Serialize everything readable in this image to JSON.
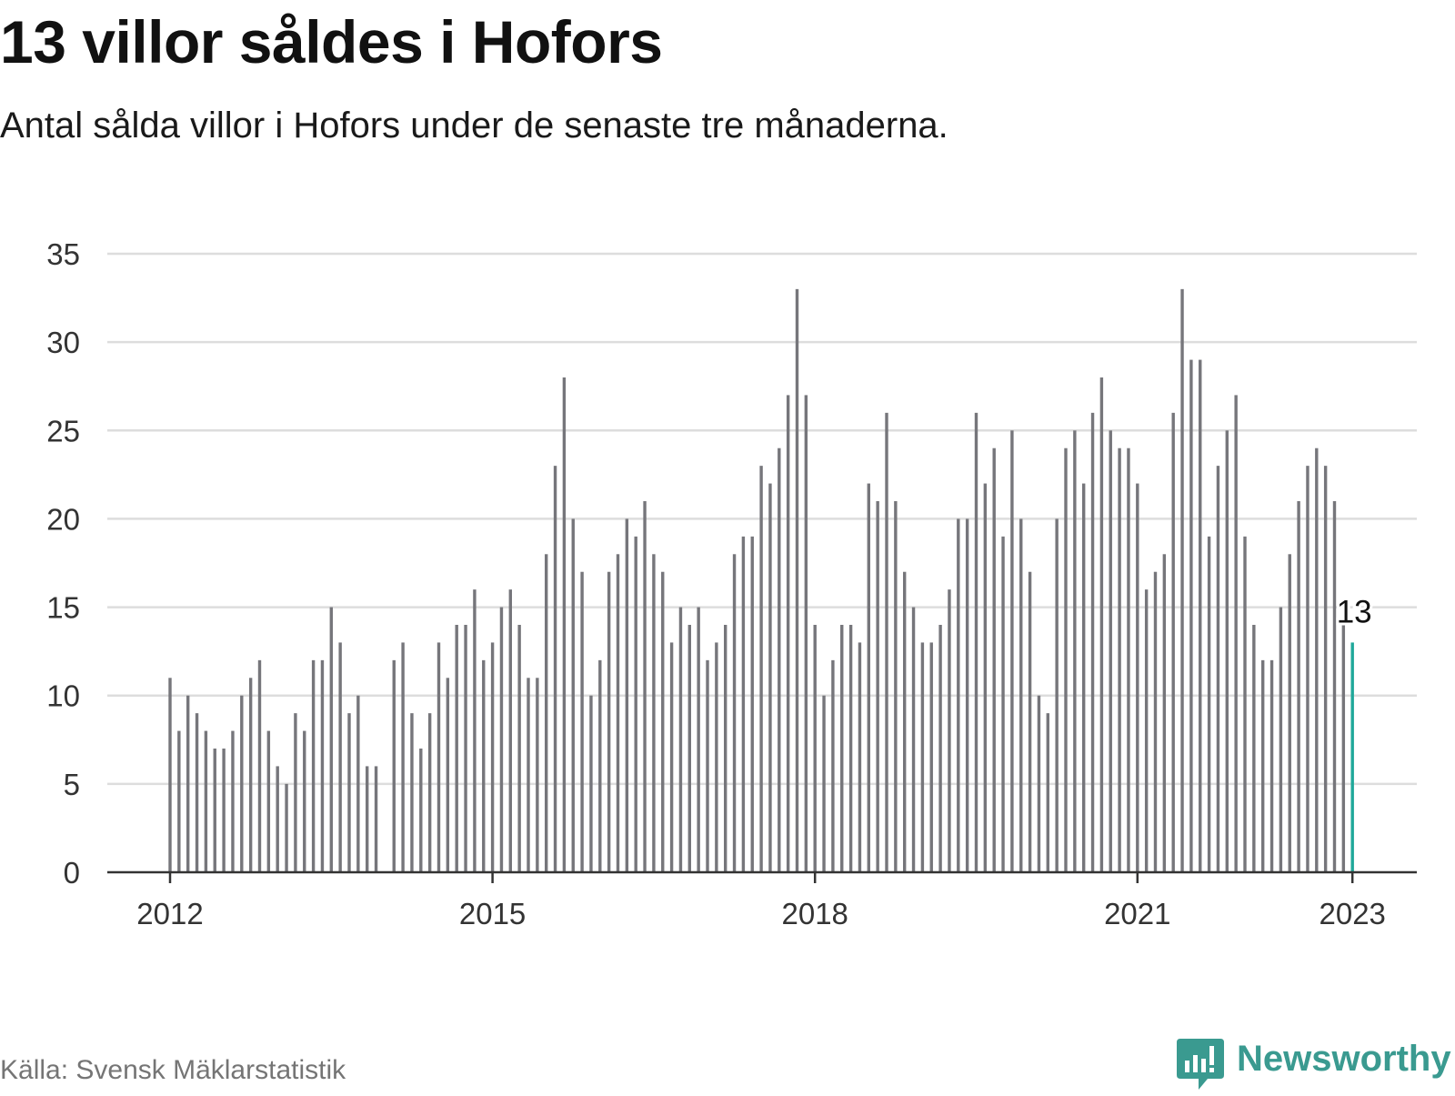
{
  "header": {
    "title": "13 villor såldes i Hofors",
    "subtitle": "Antal sålda villor i Hofors under de senaste tre månaderna."
  },
  "footer": {
    "source": "Källa: Svensk Mäklarstatistik",
    "brand": "Newsworthy"
  },
  "colors": {
    "bar": "#76767b",
    "highlight": "#1fa89a",
    "grid": "#dddddd",
    "axis": "#333333",
    "brand": "#3a9a90"
  },
  "chart_data": {
    "type": "bar",
    "ylim": [
      0,
      35
    ],
    "yticks": [
      0,
      5,
      10,
      15,
      20,
      25,
      30,
      35
    ],
    "xticks": [
      {
        "label": "2012",
        "index": 0
      },
      {
        "label": "2015",
        "index": 36
      },
      {
        "label": "2018",
        "index": 72
      },
      {
        "label": "2021",
        "index": 108
      },
      {
        "label": "2023",
        "index": 132
      }
    ],
    "grid": true,
    "first_period": "2012-01",
    "last_period": "2023-01",
    "values": [
      11,
      8,
      10,
      9,
      8,
      7,
      7,
      8,
      10,
      11,
      12,
      8,
      6,
      5,
      9,
      8,
      12,
      12,
      15,
      13,
      9,
      10,
      6,
      6,
      null,
      12,
      13,
      9,
      7,
      9,
      13,
      11,
      14,
      14,
      16,
      12,
      13,
      15,
      16,
      14,
      11,
      11,
      18,
      23,
      28,
      20,
      17,
      10,
      12,
      17,
      18,
      20,
      19,
      21,
      18,
      17,
      13,
      15,
      14,
      15,
      12,
      13,
      14,
      18,
      19,
      19,
      23,
      22,
      24,
      27,
      33,
      27,
      14,
      10,
      12,
      14,
      14,
      13,
      22,
      21,
      26,
      21,
      17,
      15,
      13,
      13,
      14,
      16,
      20,
      20,
      26,
      22,
      24,
      19,
      25,
      20,
      17,
      10,
      9,
      20,
      24,
      25,
      22,
      26,
      28,
      25,
      24,
      24,
      22,
      16,
      17,
      18,
      26,
      33,
      29,
      29,
      19,
      23,
      25,
      27,
      19,
      14,
      12,
      12,
      15,
      18,
      21,
      23,
      24,
      23,
      21,
      14,
      13
    ],
    "highlight_index": 132,
    "highlight_label": "13"
  }
}
